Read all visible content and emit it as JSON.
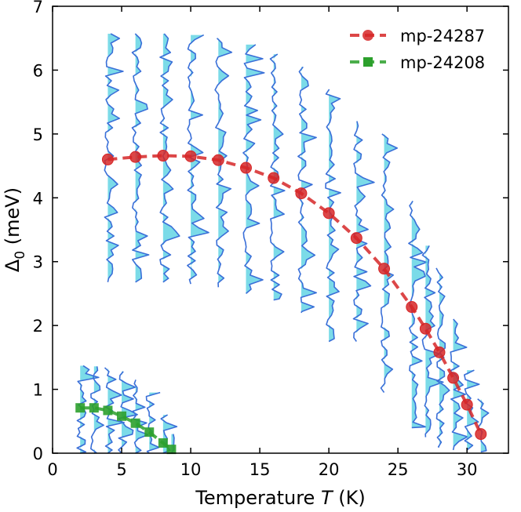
{
  "chart_data": {
    "type": "line",
    "title": "",
    "xlabel": {
      "prefix": "Temperature ",
      "var": "T",
      "suffix": " (K)"
    },
    "ylabel": {
      "prefix": "Δ",
      "sub": "0",
      "suffix": " (meV)"
    },
    "xlim": [
      0,
      33
    ],
    "ylim": [
      0,
      7
    ],
    "xticks": [
      0,
      5,
      10,
      15,
      20,
      25,
      30
    ],
    "yticks": [
      0,
      1,
      2,
      3,
      4,
      5,
      6,
      7
    ],
    "grid": false,
    "legend_position": "top-right",
    "series": [
      {
        "name": "mp-24287",
        "color": "#d62728",
        "marker": "circle",
        "linestyle": "dashed",
        "x": [
          4,
          6,
          8,
          10,
          12,
          14,
          16,
          18,
          20,
          22,
          24,
          26,
          27,
          28,
          29,
          30,
          31
        ],
        "y": [
          4.6,
          4.64,
          4.66,
          4.65,
          4.59,
          4.47,
          4.31,
          4.07,
          3.76,
          3.37,
          2.89,
          2.29,
          1.95,
          1.58,
          1.18,
          0.76,
          0.3
        ]
      },
      {
        "name": "mp-24208",
        "color": "#2ca02c",
        "marker": "square",
        "linestyle": "dashed",
        "x": [
          2,
          3,
          4,
          5,
          6,
          7,
          8,
          8.6
        ],
        "y": [
          0.71,
          0.71,
          0.67,
          0.58,
          0.47,
          0.33,
          0.16,
          0.06
        ]
      }
    ],
    "spectra_overlay": {
      "description": "gap distribution histograms drawn vertically at each temperature",
      "line_color": "#3a6fd8",
      "fill_color": "#4fcfe0",
      "mp-24287": [
        {
          "T": 4,
          "ymin": 2.68,
          "ymax": 6.57
        },
        {
          "T": 6,
          "ymin": 2.68,
          "ymax": 6.57
        },
        {
          "T": 8,
          "ymin": 2.68,
          "ymax": 6.57
        },
        {
          "T": 10,
          "ymin": 2.65,
          "ymax": 6.55
        },
        {
          "T": 12,
          "ymin": 2.6,
          "ymax": 6.5
        },
        {
          "T": 14,
          "ymin": 2.5,
          "ymax": 6.4
        },
        {
          "T": 16,
          "ymin": 2.4,
          "ymax": 6.25
        },
        {
          "T": 18,
          "ymin": 2.2,
          "ymax": 6.05
        },
        {
          "T": 20,
          "ymin": 1.75,
          "ymax": 5.7
        },
        {
          "T": 22,
          "ymin": 1.75,
          "ymax": 5.2
        },
        {
          "T": 24,
          "ymin": 0.95,
          "ymax": 5.0
        },
        {
          "T": 26,
          "ymin": 0.4,
          "ymax": 3.95
        },
        {
          "T": 27,
          "ymin": 0.25,
          "ymax": 3.25
        },
        {
          "T": 28,
          "ymin": 0.1,
          "ymax": 2.9
        },
        {
          "T": 29,
          "ymin": 0.05,
          "ymax": 2.1
        },
        {
          "T": 30,
          "ymin": 0.05,
          "ymax": 1.3
        },
        {
          "T": 31,
          "ymin": 0.02,
          "ymax": 0.85
        }
      ],
      "mp-24208": [
        {
          "T": 2,
          "ymin": 0.0,
          "ymax": 1.37
        },
        {
          "T": 3,
          "ymin": 0.0,
          "ymax": 1.36
        },
        {
          "T": 4,
          "ymin": 0.0,
          "ymax": 1.34
        },
        {
          "T": 5,
          "ymin": 0.0,
          "ymax": 1.28
        },
        {
          "T": 6,
          "ymin": 0.0,
          "ymax": 1.15
        },
        {
          "T": 7,
          "ymin": 0.0,
          "ymax": 0.95
        },
        {
          "T": 8,
          "ymin": 0.0,
          "ymax": 0.6
        },
        {
          "T": 8.6,
          "ymin": 0.0,
          "ymax": 0.3
        }
      ]
    }
  }
}
